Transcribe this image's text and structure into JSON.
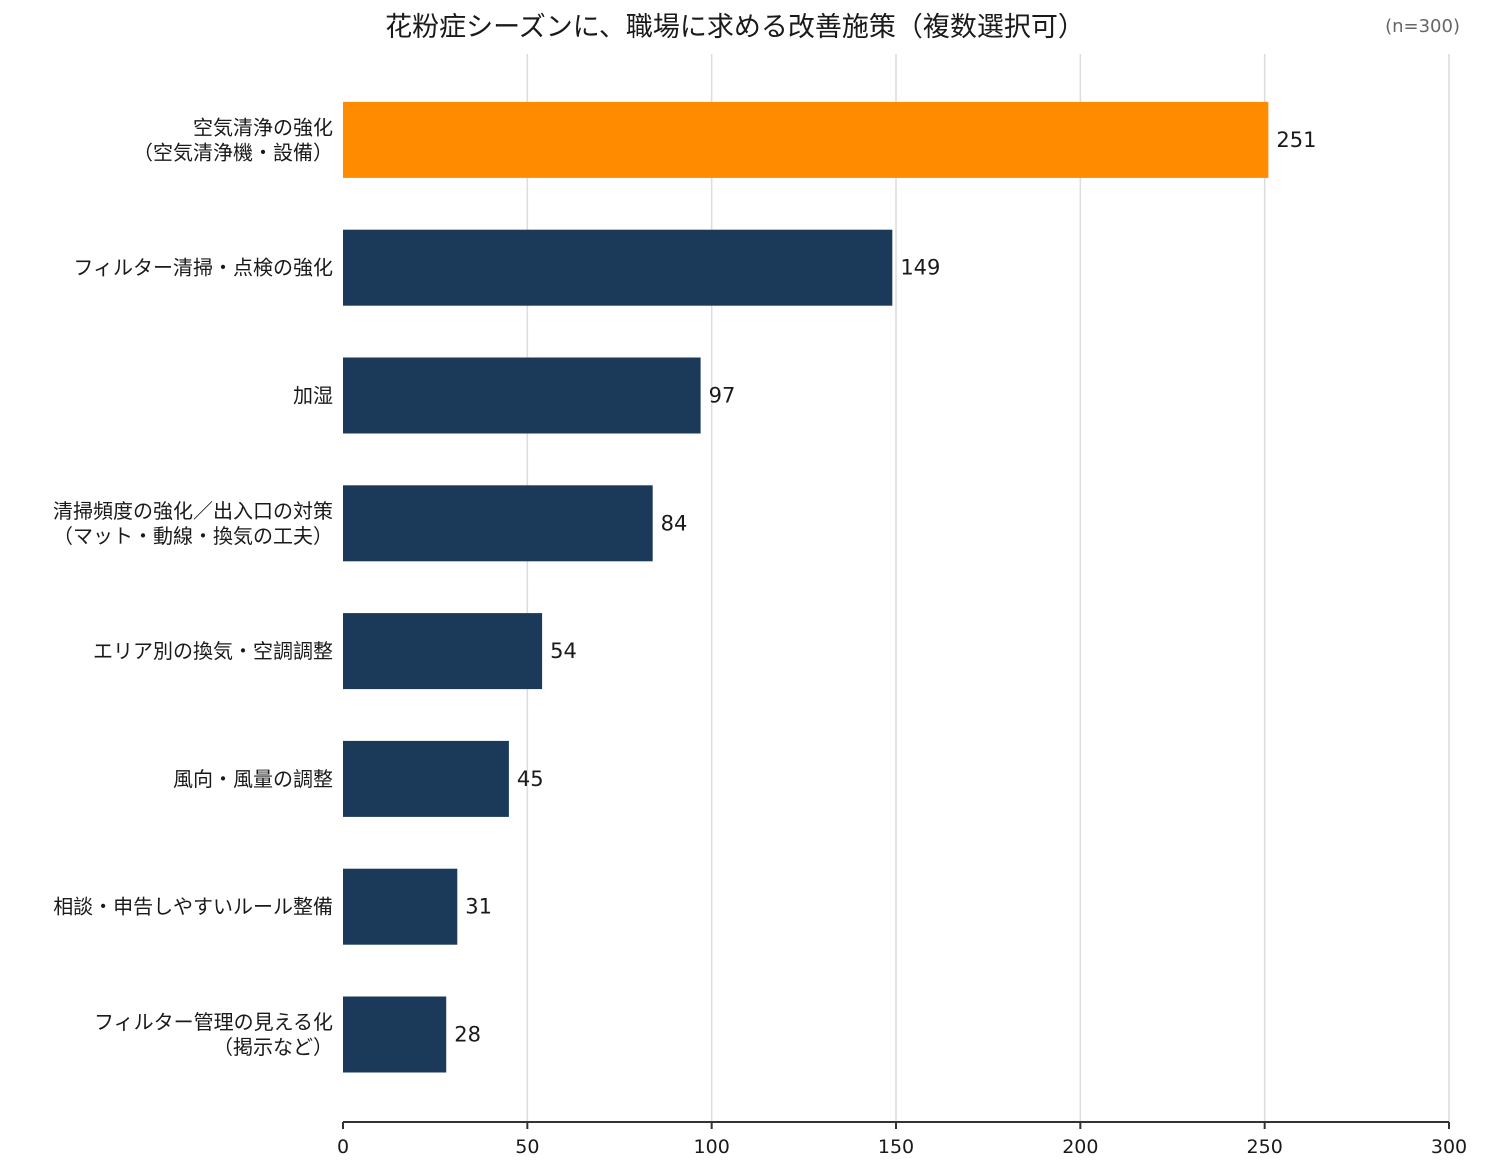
{
  "chart_data": {
    "type": "bar",
    "orientation": "horizontal",
    "title": "花粉症シーズンに、職場に求める改善施策（複数選択可）",
    "note": "(n=300)",
    "categories": [
      [
        "空気清浄の強化",
        "（空気清浄機・設備）"
      ],
      [
        "フィルター清掃・点検の強化"
      ],
      [
        "加湿"
      ],
      [
        "清掃頻度の強化／出入口の対策",
        "（マット・動線・換気の工夫）"
      ],
      [
        "エリア別の換気・空調調整"
      ],
      [
        "風向・風量の調整"
      ],
      [
        "相談・申告しやすいルール整備"
      ],
      [
        "フィルター管理の見える化",
        "（掲示など）"
      ]
    ],
    "values": [
      251,
      149,
      97,
      84,
      54,
      45,
      31,
      28
    ],
    "colors": [
      "#ff8c00",
      "#1b3a5a",
      "#1b3a5a",
      "#1b3a5a",
      "#1b3a5a",
      "#1b3a5a",
      "#1b3a5a",
      "#1b3a5a"
    ],
    "xlim": [
      0,
      300
    ],
    "xticks": [
      0,
      50,
      100,
      150,
      200,
      250,
      300
    ],
    "grid": true,
    "xlabel": "",
    "ylabel": ""
  }
}
